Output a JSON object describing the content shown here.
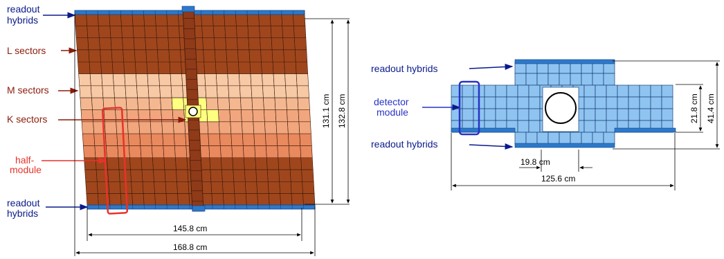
{
  "left_panel": {
    "labels": {
      "readout_top_1": "readout",
      "readout_top_2": "hybrids",
      "l_sectors": "L sectors",
      "m_sectors": "M sectors",
      "k_sectors": "K sectors",
      "half_module_1": "half-",
      "half_module_2": "module",
      "readout_bottom_1": "readout",
      "readout_bottom_2": "hybrids"
    },
    "dimensions": {
      "inner_width": "145.8 cm",
      "outer_width": "168.8 cm",
      "inner_height": "131.1 cm",
      "outer_height": "132.8 cm"
    }
  },
  "right_panel": {
    "labels": {
      "readout_top": "readout hybrids",
      "detector_1": "detector",
      "detector_2": "module",
      "readout_bottom": "readout hybrids"
    },
    "dimensions": {
      "module_width": "19.8 cm",
      "total_width": "125.6 cm",
      "inner_height": "21.8 cm",
      "outer_height": "41.4 cm"
    }
  },
  "colors": {
    "L_sector": "#a0461c",
    "M_sector": "#f7c9a5",
    "M_sector_alt": "#f1a67d",
    "K_sector": "#ffff80",
    "module_blue": "#8fc4f1",
    "hybrid_blue": "#2d79c9",
    "label_red": "#8b1a0a",
    "label_blue": "#0a1a8b",
    "highlight_red": "#e8322a",
    "highlight_blue": "#2733c5"
  }
}
